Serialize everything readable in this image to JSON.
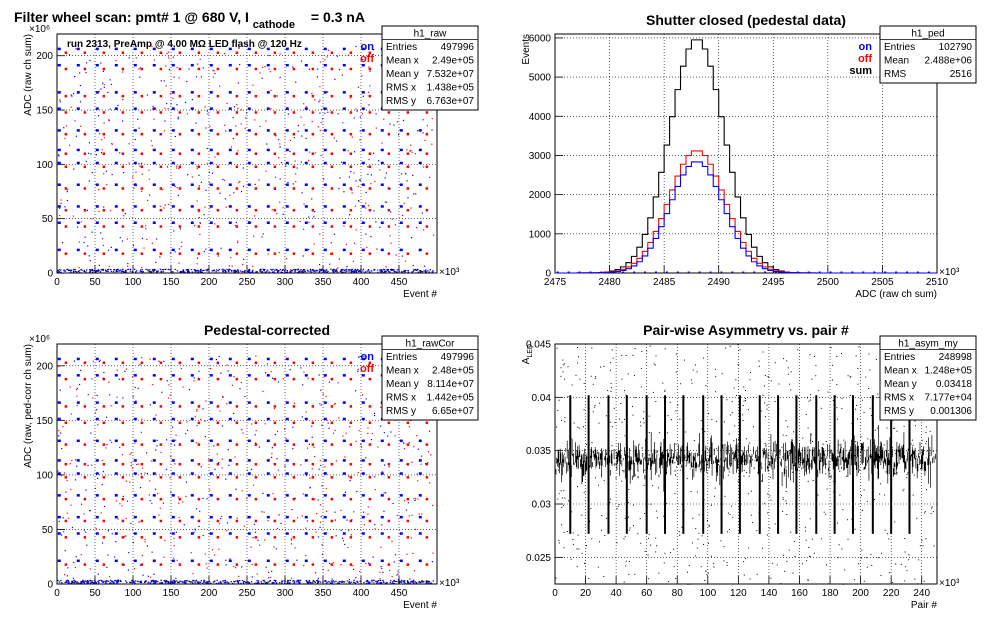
{
  "canvas_title": "Filter wheel scan: pmt#   1 @   680 V, I",
  "canvas_title_sub": "cathode",
  "canvas_title_tail": "= 0.3 nA",
  "legend": {
    "on": "on",
    "off": "off",
    "sum": "sum"
  },
  "colors": {
    "on": "#0000ff",
    "off": "#ff0000",
    "sum": "#000000",
    "grid": "#000000"
  },
  "chart_data": [
    {
      "id": "raw",
      "type": "scatter",
      "title": "",
      "annotation": "run 2313, PreAmp @ 4.00 MΩ   LED flash @  120 Hz",
      "xlabel": "Event #",
      "ylabel": "ADC (raw ch sum)",
      "x_exponent": "×10³",
      "y_exponent": "×10⁶",
      "xlim": [
        0,
        500
      ],
      "ylim": [
        0,
        220
      ],
      "xticks": [
        0,
        50,
        100,
        150,
        200,
        250,
        300,
        350,
        400,
        450
      ],
      "yticks": [
        0,
        50,
        100,
        150,
        200
      ],
      "step_levels": [
        2,
        20,
        45,
        60,
        80,
        100,
        112,
        130,
        150,
        165,
        190,
        205
      ],
      "stats": {
        "name": "h1_raw",
        "rows": [
          [
            "Entries",
            "497996"
          ],
          [
            "Mean x",
            "2.49e+05"
          ],
          [
            "Mean y",
            "7.532e+07"
          ],
          [
            "RMS x",
            "1.438e+05"
          ],
          [
            "RMS y",
            "6.763e+07"
          ]
        ]
      }
    },
    {
      "id": "ped",
      "type": "line",
      "title": "Shutter closed (pedestal data)",
      "xlabel": "ADC (raw ch sum)",
      "ylabel": "Events",
      "x_exponent": "×10³",
      "xlim": [
        2475,
        2510
      ],
      "ylim": [
        0,
        6100
      ],
      "xticks": [
        2475,
        2480,
        2485,
        2490,
        2495,
        2500,
        2505,
        2510
      ],
      "yticks": [
        0,
        1000,
        2000,
        3000,
        4000,
        5000,
        6000
      ],
      "series": [
        {
          "name": "sum",
          "color": "#000000",
          "mean": 2488.0,
          "rms": 2.5,
          "peak": 5980
        },
        {
          "name": "off",
          "color": "#ff0000",
          "mean": 2488.0,
          "rms": 2.55,
          "peak": 3130
        },
        {
          "name": "on",
          "color": "#0000ff",
          "mean": 2488.0,
          "rms": 2.45,
          "peak": 2850
        }
      ],
      "stats": {
        "name": "h1_ped",
        "rows": [
          [
            "Entries",
            "102790"
          ],
          [
            "Mean",
            "2.488e+06"
          ],
          [
            "RMS",
            "2516"
          ]
        ]
      }
    },
    {
      "id": "rawCor",
      "type": "scatter",
      "title": "Pedestal-corrected",
      "xlabel": "Event #",
      "ylabel": "ADC (raw, ped-corr ch sum)",
      "x_exponent": "×10³",
      "y_exponent": "×10⁶",
      "xlim": [
        0,
        500
      ],
      "ylim": [
        0,
        220
      ],
      "xticks": [
        0,
        50,
        100,
        150,
        200,
        250,
        300,
        350,
        400,
        450
      ],
      "yticks": [
        0,
        50,
        100,
        150,
        200
      ],
      "step_levels": [
        2,
        20,
        45,
        60,
        80,
        100,
        112,
        130,
        150,
        165,
        190,
        205
      ],
      "stats": {
        "name": "h1_rawCor",
        "rows": [
          [
            "Entries",
            "497996"
          ],
          [
            "Mean x",
            "2.48e+05"
          ],
          [
            "Mean y",
            "8.114e+07"
          ],
          [
            "RMS x",
            "1.442e+05"
          ],
          [
            "RMS y",
            "6.65e+07"
          ]
        ]
      }
    },
    {
      "id": "asym",
      "type": "scatter",
      "title": "Pair-wise Asymmetry vs. pair #",
      "xlabel": "Pair #",
      "ylabel": "A",
      "ylabel_sub": "LED",
      "x_exponent": "×10³",
      "xlim": [
        0,
        250
      ],
      "ylim": [
        0.0225,
        0.045
      ],
      "xticks": [
        0,
        20,
        40,
        60,
        80,
        100,
        120,
        140,
        160,
        180,
        200,
        220,
        240
      ],
      "yticks": [
        0.025,
        0.03,
        0.035,
        0.04,
        0.045
      ],
      "ytick_labels": [
        "0.025",
        "0.03",
        "0.035",
        "0.04",
        "0.045"
      ],
      "center": 0.0342,
      "spike_pairs": [
        10,
        22,
        35,
        47,
        60,
        72,
        84,
        97,
        109,
        121,
        134,
        146,
        158,
        171,
        183,
        195,
        208,
        220,
        232
      ],
      "stats": {
        "name": "h1_asym_my",
        "rows": [
          [
            "Entries",
            "248998"
          ],
          [
            "Mean x",
            "1.248e+05"
          ],
          [
            "Mean y",
            "0.03418"
          ],
          [
            "RMS x",
            "7.177e+04"
          ],
          [
            "RMS y",
            "0.001306"
          ]
        ]
      }
    }
  ]
}
